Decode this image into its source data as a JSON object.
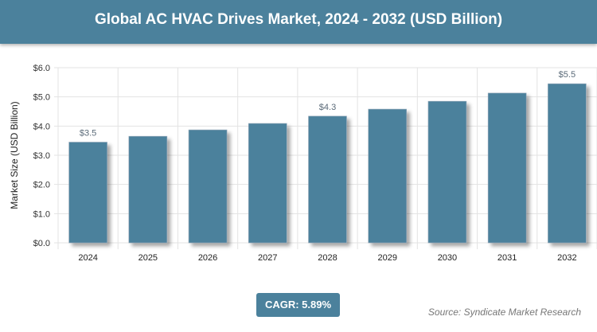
{
  "chart_data": {
    "type": "bar",
    "title": "Global AC HVAC Drives Market, 2024 - 2032 (USD Billion)",
    "xlabel": "",
    "ylabel": "Market Size (USD Billion)",
    "categories": [
      "2024",
      "2025",
      "2026",
      "2027",
      "2028",
      "2029",
      "2030",
      "2031",
      "2032"
    ],
    "values": [
      3.45,
      3.65,
      3.87,
      4.09,
      4.34,
      4.58,
      4.85,
      5.13,
      5.45
    ],
    "data_labels": {
      "0": "$3.5",
      "4": "$4.3",
      "8": "$5.5"
    },
    "ylim": [
      0,
      6
    ],
    "yticks": [
      "$0.0",
      "$1.0",
      "$2.0",
      "$3.0",
      "$4.0",
      "$5.0",
      "$6.0"
    ],
    "grid": true,
    "bar_color": "#4b819c"
  },
  "cagr": "CAGR: 5.89%",
  "source": "Source: Syndicate Market Research"
}
